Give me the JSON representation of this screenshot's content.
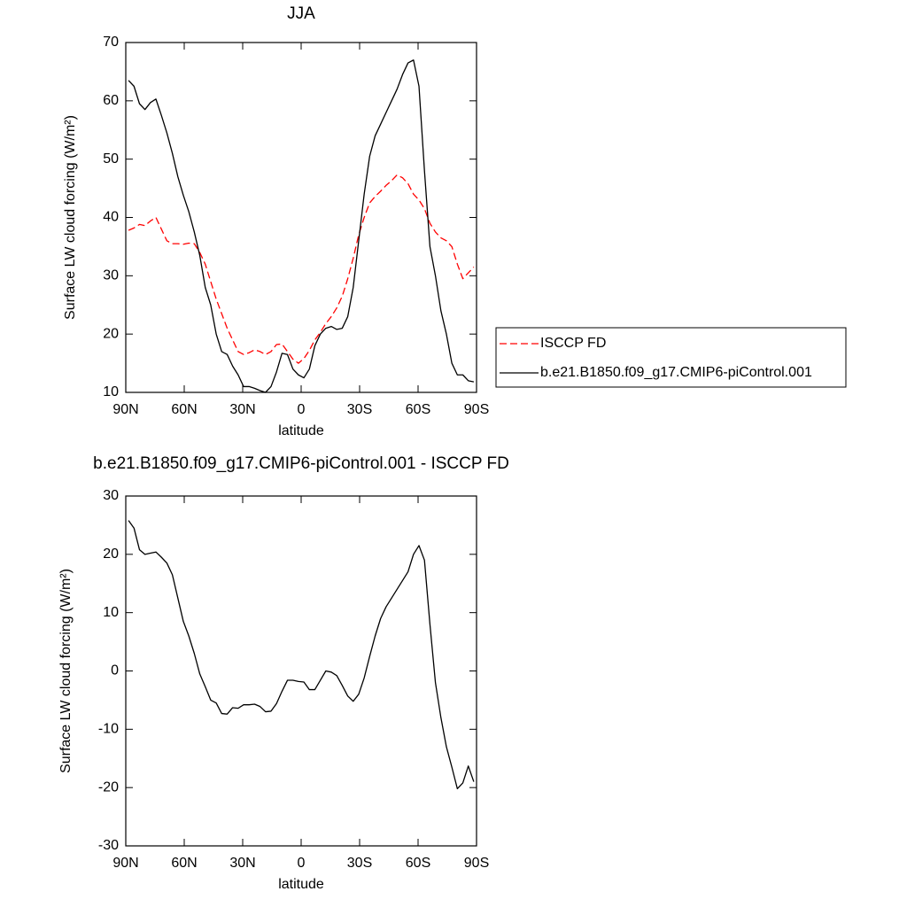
{
  "chart_data": [
    {
      "type": "line",
      "title": "JJA",
      "xlabel": "latitude",
      "ylabel": "Surface LW cloud forcing (W/m²)",
      "x": [
        88.59,
        85.78,
        82.97,
        80.16,
        77.34,
        74.53,
        71.72,
        68.91,
        66.09,
        63.28,
        60.47,
        57.66,
        54.84,
        52.03,
        49.22,
        46.41,
        43.59,
        40.78,
        37.97,
        35.16,
        32.34,
        29.53,
        26.72,
        23.91,
        21.09,
        18.28,
        15.47,
        12.66,
        9.84,
        7.03,
        4.22,
        1.41,
        -1.41,
        -4.22,
        -7.03,
        -9.84,
        -12.66,
        -15.47,
        -18.28,
        -21.09,
        -23.91,
        -26.72,
        -29.53,
        -32.34,
        -35.16,
        -37.97,
        -40.78,
        -43.59,
        -46.41,
        -49.22,
        -52.03,
        -54.84,
        -57.66,
        -60.47,
        -63.28,
        -66.09,
        -68.91,
        -71.72,
        -74.53,
        -77.34,
        -80.16,
        -82.97,
        -85.78,
        -88.59
      ],
      "series": [
        {
          "name": "ISCCP FD",
          "color": "#ff0000",
          "dashed": true,
          "values": [
            37.8,
            38.2,
            38.8,
            38.6,
            39.4,
            40,
            38,
            36,
            35.5,
            35.5,
            35.4,
            35.6,
            35.5,
            34,
            32,
            29,
            26,
            23.5,
            21,
            19,
            17,
            16.5,
            16.8,
            17.3,
            17,
            16.5,
            17,
            18.2,
            18.3,
            17,
            15.7,
            15,
            15.8,
            17.2,
            19,
            20.3,
            21.8,
            23,
            24.5,
            26.5,
            29.5,
            33,
            37,
            40,
            42.5,
            43.6,
            44.5,
            45.5,
            46.3,
            47.3,
            46.8,
            45.8,
            44,
            43,
            41.5,
            39,
            37.5,
            36.5,
            36,
            35,
            32,
            29.5,
            30.5,
            31.5
          ]
        },
        {
          "name": "b.e21.B1850.f09_g17.CMIP6-piControl.001",
          "color": "#000000",
          "dashed": false,
          "values": [
            63.5,
            62.5,
            59.5,
            58.5,
            59.7,
            60.3,
            57.5,
            54.5,
            51,
            47,
            43.8,
            41,
            37.5,
            33.5,
            28,
            25,
            20,
            17,
            16.5,
            14.5,
            13,
            11,
            11,
            10.7,
            10.3,
            10,
            11,
            13.5,
            16.7,
            16.5,
            14,
            13,
            12.5,
            14,
            18,
            20,
            21,
            21.3,
            20.8,
            21,
            23,
            28,
            36,
            44,
            50.5,
            54,
            56,
            58,
            60,
            62,
            64.5,
            66.5,
            67,
            62.5,
            48,
            35,
            30,
            24,
            20,
            15,
            13,
            13,
            12,
            11.8
          ]
        }
      ],
      "xlim": [
        90,
        -90
      ],
      "xticks": [
        {
          "value": 90,
          "label": "90N"
        },
        {
          "value": 60,
          "label": "60N"
        },
        {
          "value": 30,
          "label": "30N"
        },
        0,
        {
          "value": -30,
          "label": "30S"
        },
        {
          "value": -60,
          "label": "60S"
        },
        {
          "value": -90,
          "label": "90S"
        }
      ],
      "ylim": [
        10,
        70
      ],
      "yticks": [
        10,
        20,
        30,
        40,
        50,
        60,
        70
      ],
      "legend": "right"
    },
    {
      "type": "line",
      "title": "b.e21.B1850.f09_g17.CMIP6-piControl.001 - ISCCP FD",
      "xlabel": "latitude",
      "ylabel": "Surface LW cloud forcing (W/m²)",
      "x": [
        88.59,
        85.78,
        82.97,
        80.16,
        77.34,
        74.53,
        71.72,
        68.91,
        66.09,
        63.28,
        60.47,
        57.66,
        54.84,
        52.03,
        49.22,
        46.41,
        43.59,
        40.78,
        37.97,
        35.16,
        32.34,
        29.53,
        26.72,
        23.91,
        21.09,
        18.28,
        15.47,
        12.66,
        9.84,
        7.03,
        4.22,
        1.41,
        -1.41,
        -4.22,
        -7.03,
        -9.84,
        -12.66,
        -15.47,
        -18.28,
        -21.09,
        -23.91,
        -26.72,
        -29.53,
        -32.34,
        -35.16,
        -37.97,
        -40.78,
        -43.59,
        -46.41,
        -49.22,
        -52.03,
        -54.84,
        -57.66,
        -60.47,
        -63.28,
        -66.09,
        -68.91,
        -71.72,
        -74.53,
        -77.34,
        -80.16,
        -82.97,
        -85.78,
        -88.59
      ],
      "series": [
        {
          "color": "#000000",
          "dashed": false,
          "values": [
            25.8,
            24.5,
            20.8,
            20,
            20.2,
            20.4,
            19.5,
            18.5,
            16.5,
            12.5,
            8.5,
            6,
            3,
            -0.5,
            -2.7,
            -5,
            -5.5,
            -7.3,
            -7.4,
            -6.3,
            -6.4,
            -5.8,
            -5.8,
            -5.7,
            -6.1,
            -7,
            -6.9,
            -5.6,
            -3.5,
            -1.6,
            -1.6,
            -1.8,
            -1.9,
            -3.2,
            -3.2,
            -1.6,
            0,
            -0.2,
            -0.8,
            -2.5,
            -4.3,
            -5.2,
            -4,
            -1.2,
            2.5,
            6,
            9,
            11,
            12.5,
            14,
            15.5,
            17,
            20,
            21.5,
            19,
            8,
            -2,
            -8,
            -13,
            -16.5,
            -20.2,
            -19.2,
            -16.3,
            -19
          ]
        }
      ],
      "xlim": [
        90,
        -90
      ],
      "xticks": [
        {
          "value": 90,
          "label": "90N"
        },
        {
          "value": 60,
          "label": "60N"
        },
        {
          "value": 30,
          "label": "30N"
        },
        0,
        {
          "value": -30,
          "label": "30S"
        },
        {
          "value": -60,
          "label": "60S"
        },
        {
          "value": -90,
          "label": "90S"
        }
      ],
      "ylim": [
        -30,
        30
      ],
      "yticks": [
        -30,
        -20,
        -10,
        0,
        10,
        20,
        30
      ]
    }
  ]
}
